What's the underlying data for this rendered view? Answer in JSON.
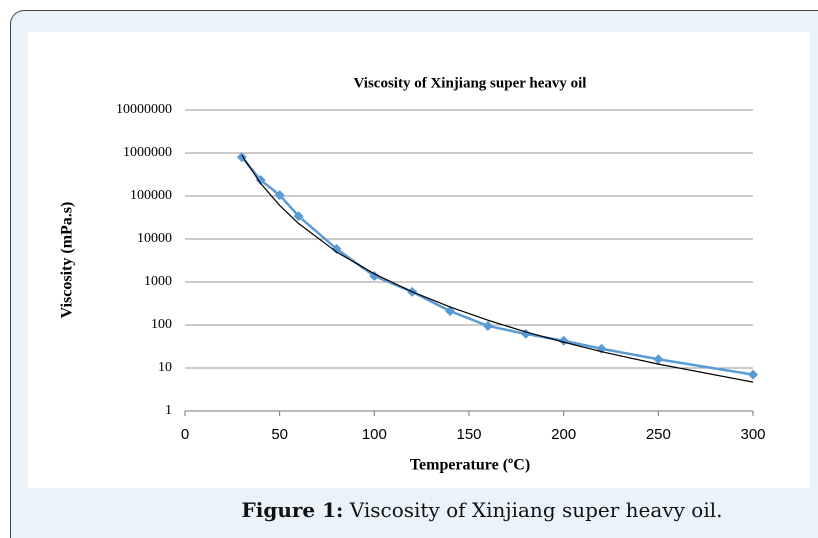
{
  "caption": {
    "label": "Figure 1:",
    "text": "Viscosity of Xinjiang super heavy oil."
  },
  "chart_data": {
    "type": "line",
    "title": "Viscosity of Xinjiang super heavy oil",
    "x_label": "Temperature (ºC)",
    "y_label": "Viscosity (mPa.s)",
    "x": [
      30,
      40,
      50,
      60,
      80,
      100,
      120,
      140,
      160,
      180,
      200,
      220,
      250,
      300
    ],
    "series": [
      {
        "color": "#5b9bd5",
        "marker": "diamond",
        "values": [
          800000,
          235000,
          105000,
          34000,
          5900,
          1380,
          590,
          210,
          95,
          62,
          43,
          28,
          16,
          7
        ]
      },
      {
        "color": "#000000",
        "values": [
          891000,
          195000,
          60300,
          22900,
          5000,
          1550,
          590,
          263,
          129,
          69,
          40,
          24,
          12.3,
          4.7
        ]
      }
    ],
    "xlim": [
      0,
      300
    ],
    "xticks": [
      0,
      50,
      100,
      150,
      200,
      250,
      300
    ],
    "ylim": [
      1,
      10000000
    ],
    "yticks": [
      1,
      10,
      100,
      1000,
      10000,
      100000,
      1000000,
      10000000
    ],
    "y_log": true,
    "grid": true
  }
}
